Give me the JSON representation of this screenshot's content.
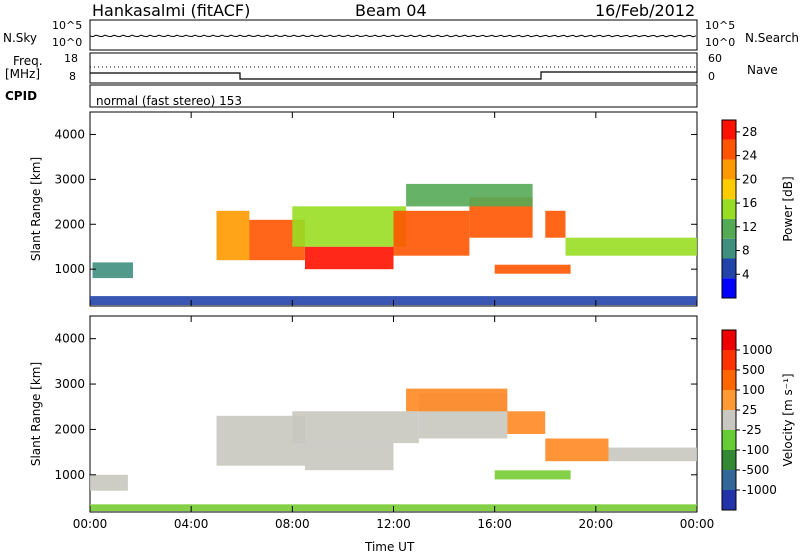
{
  "header": {
    "station": "Hankasalmi (fitACF)",
    "beam": "Beam 04",
    "date": "16/Feb/2012"
  },
  "labels": {
    "nsky": "N.Sky",
    "nsearch": "N.Search",
    "freq_line1": "Freq.",
    "freq_line2": "[MHz]",
    "nave": "Nave",
    "cpid": "CPID",
    "cpid_value": "normal (fast stereo) 153",
    "xlabel": "Time UT",
    "ylabel": "Slant Range [km]",
    "power_label": "Power [dB]",
    "velocity_label": "Velocity [m s⁻¹]",
    "noise_tick_high": "10^5",
    "noise_tick_low": "10^0",
    "freq_tick_high": "18",
    "freq_tick_low": "8",
    "nave_tick_high": "60",
    "nave_tick_low": "0"
  },
  "chart_data": [
    {
      "type": "heatmap",
      "title": "Power",
      "xlabel": "Time UT",
      "ylabel": "Slant Range [km]",
      "x_ticks": [
        "00:00",
        "04:00",
        "08:00",
        "12:00",
        "16:00",
        "20:00",
        "00:00"
      ],
      "xlim_hours": [
        0,
        24
      ],
      "y_ticks": [
        1000,
        2000,
        3000,
        4000
      ],
      "ylim_km": [
        180,
        4500
      ],
      "colorbar": {
        "label": "Power [dB]",
        "ticks": [
          4,
          8,
          12,
          16,
          20,
          24,
          28
        ],
        "range": [
          0,
          30
        ],
        "colors": [
          "#0000ff",
          "#2244aa",
          "#3f8f7f",
          "#55aa55",
          "#99dd22",
          "#ffcc00",
          "#ff9900",
          "#ff5500",
          "#ff1100"
        ]
      },
      "bands": [
        {
          "t0": 0.1,
          "t1": 1.7,
          "r0": 800,
          "r1": 1150,
          "level": 8
        },
        {
          "t0": 5.0,
          "t1": 6.3,
          "r0": 1200,
          "r1": 2300,
          "level": 20
        },
        {
          "t0": 6.3,
          "t1": 8.5,
          "r0": 1200,
          "r1": 2100,
          "level": 24
        },
        {
          "t0": 8.5,
          "t1": 12.0,
          "r0": 1000,
          "r1": 1500,
          "level": 28
        },
        {
          "t0": 8.0,
          "t1": 12.5,
          "r0": 1500,
          "r1": 2400,
          "level": 16
        },
        {
          "t0": 12.0,
          "t1": 15.0,
          "r0": 1300,
          "r1": 2300,
          "level": 26
        },
        {
          "t0": 15.0,
          "t1": 17.5,
          "r0": 1700,
          "r1": 2600,
          "level": 24
        },
        {
          "t0": 12.5,
          "t1": 17.5,
          "r0": 2400,
          "r1": 2900,
          "level": 10
        },
        {
          "t0": 16.0,
          "t1": 19.0,
          "r0": 900,
          "r1": 1100,
          "level": 24
        },
        {
          "t0": 18.0,
          "t1": 18.8,
          "r0": 1700,
          "r1": 2300,
          "level": 24
        },
        {
          "t0": 18.8,
          "t1": 24.0,
          "r0": 1300,
          "r1": 1700,
          "level": 16
        },
        {
          "t0": 0.0,
          "t1": 24.0,
          "r0": 200,
          "r1": 400,
          "level": 6
        }
      ]
    },
    {
      "type": "heatmap",
      "title": "Velocity",
      "xlabel": "Time UT",
      "ylabel": "Slant Range [km]",
      "x_ticks": [
        "00:00",
        "04:00",
        "08:00",
        "12:00",
        "16:00",
        "20:00",
        "00:00"
      ],
      "xlim_hours": [
        0,
        24
      ],
      "y_ticks": [
        1000,
        2000,
        3000,
        4000
      ],
      "ylim_km": [
        180,
        4500
      ],
      "colorbar": {
        "label": "Velocity [m s⁻¹]",
        "ticks": [
          1000,
          500,
          100,
          25,
          -25,
          -100,
          -500,
          -1000
        ],
        "colors": [
          "#2233aa",
          "#336699",
          "#338833",
          "#66cc33",
          "#c8c8c0",
          "#ff9933",
          "#ff6600",
          "#ff3300",
          "#ee0000"
        ]
      },
      "bands": [
        {
          "t0": 0.0,
          "t1": 1.5,
          "r0": 650,
          "r1": 1000,
          "level": "grey"
        },
        {
          "t0": 5.0,
          "t1": 8.5,
          "r0": 1200,
          "r1": 2300,
          "level": "grey"
        },
        {
          "t0": 8.5,
          "t1": 12.0,
          "r0": 1100,
          "r1": 1700,
          "level": "grey"
        },
        {
          "t0": 8.0,
          "t1": 13.0,
          "r0": 1700,
          "r1": 2400,
          "level": "grey"
        },
        {
          "t0": 13.0,
          "t1": 16.5,
          "r0": 1800,
          "r1": 2800,
          "level": "grey"
        },
        {
          "t0": 12.5,
          "t1": 16.5,
          "r0": 2400,
          "r1": 2900,
          "level": "orange"
        },
        {
          "t0": 16.5,
          "t1": 18.0,
          "r0": 1900,
          "r1": 2400,
          "level": "orange"
        },
        {
          "t0": 16.0,
          "t1": 19.0,
          "r0": 900,
          "r1": 1100,
          "level": "green"
        },
        {
          "t0": 18.0,
          "t1": 20.5,
          "r0": 1300,
          "r1": 1800,
          "level": "orange"
        },
        {
          "t0": 20.5,
          "t1": 24.0,
          "r0": 1300,
          "r1": 1600,
          "level": "grey"
        },
        {
          "t0": 0.0,
          "t1": 24.0,
          "r0": 200,
          "r1": 350,
          "level": "green"
        }
      ]
    }
  ]
}
